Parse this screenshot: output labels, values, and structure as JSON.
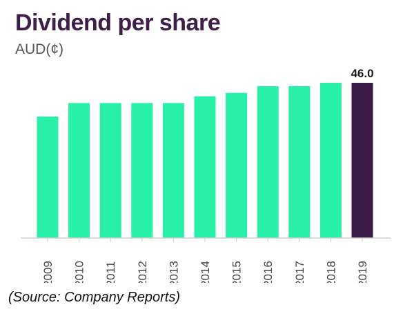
{
  "chart_data": {
    "type": "bar",
    "title": "Dividend per share",
    "subtitle": "AUD(¢)",
    "categories": [
      "2009",
      "2010",
      "2011",
      "2012",
      "2013",
      "2014",
      "2015",
      "2016",
      "2017",
      "2018",
      "2019"
    ],
    "values": [
      36.0,
      40.0,
      40.0,
      40.0,
      40.0,
      42.0,
      43.0,
      45.0,
      45.0,
      46.0,
      46.0
    ],
    "highlight_label": "46.0",
    "ylim": [
      0,
      46
    ],
    "xlabel": "",
    "ylabel": "",
    "grid": false,
    "colors": {
      "bar": "#29f0a8",
      "highlight": "#3b1b47",
      "axis": "#cfcfcf",
      "title": "#3d1f47"
    }
  },
  "source": "(Source: Company Reports)"
}
